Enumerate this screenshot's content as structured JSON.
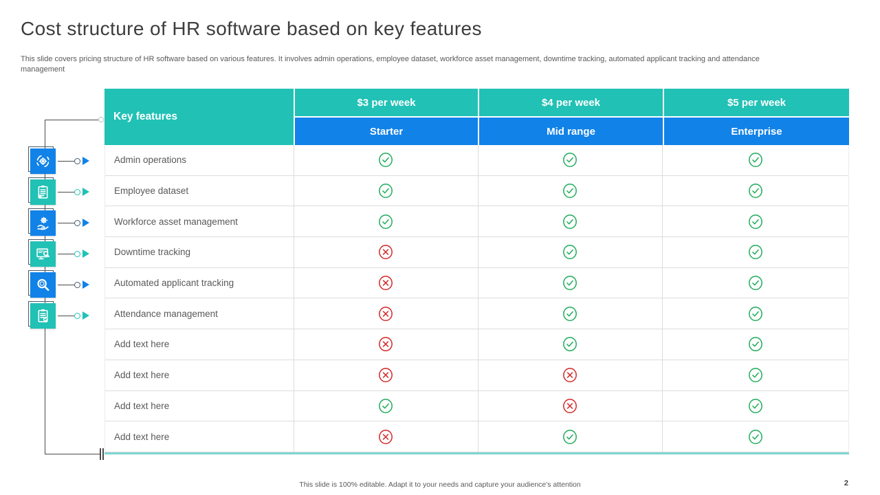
{
  "slide": {
    "title": "Cost structure of HR software based on key features",
    "description": "This slide covers pricing structure of HR software based on various features. It involves admin operations, employee dataset, workforce asset management, downtime tracking, automated applicant tracking and attendance management",
    "footer": "This slide is 100% editable.  Adapt it to your needs and capture your audience's attention",
    "page_number": "2"
  },
  "table": {
    "feature_header": "Key features",
    "price_headers": [
      "$3 per week",
      "$4 per week",
      "$5 per week"
    ],
    "tier_headers": [
      "Starter",
      "Mid range",
      "Enterprise"
    ],
    "rows": [
      {
        "feature": "Admin operations",
        "values": [
          "check",
          "check",
          "check"
        ]
      },
      {
        "feature": "Employee dataset",
        "values": [
          "check",
          "check",
          "check"
        ]
      },
      {
        "feature": "Workforce asset management",
        "values": [
          "check",
          "check",
          "check"
        ]
      },
      {
        "feature": "Downtime tracking",
        "values": [
          "cross",
          "check",
          "check"
        ]
      },
      {
        "feature": "Automated applicant tracking",
        "values": [
          "cross",
          "check",
          "check"
        ]
      },
      {
        "feature": "Attendance management",
        "values": [
          "cross",
          "check",
          "check"
        ]
      },
      {
        "feature": "Add text here",
        "values": [
          "cross",
          "check",
          "check"
        ]
      },
      {
        "feature": "Add text here",
        "values": [
          "cross",
          "cross",
          "check"
        ]
      },
      {
        "feature": "Add text here",
        "values": [
          "check",
          "cross",
          "check"
        ]
      },
      {
        "feature": "Add text here",
        "values": [
          "cross",
          "check",
          "check"
        ]
      }
    ]
  },
  "side_icons": [
    {
      "name": "sync-gear-icon",
      "color": "blue"
    },
    {
      "name": "clipboard-list-icon",
      "color": "teal"
    },
    {
      "name": "hand-gear-icon",
      "color": "blue"
    },
    {
      "name": "monitor-search-icon",
      "color": "teal"
    },
    {
      "name": "magnifier-icon",
      "color": "blue"
    },
    {
      "name": "clipboard-check-icon",
      "color": "teal"
    }
  ],
  "colors": {
    "teal": "#21C1B5",
    "blue": "#1182E8",
    "green": "#27AE60",
    "red": "#D32F2F",
    "bottom_line": "#7ED6D0"
  }
}
